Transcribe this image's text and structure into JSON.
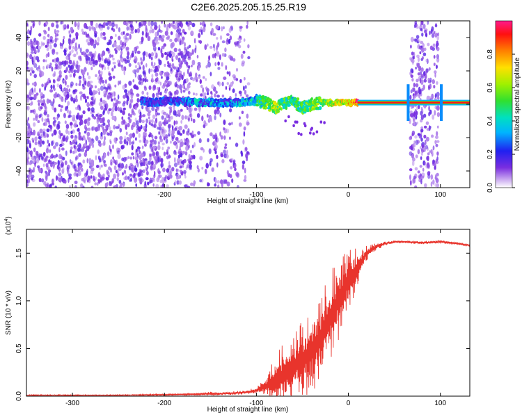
{
  "title": "C2E6.2025.205.15.25.R19",
  "chart_data": [
    {
      "type": "heatmap",
      "title": "C2E6.2025.205.15.25.R19",
      "xlabel": "Height of straight line (km)",
      "ylabel": "Frequency (Hz)",
      "xlim": [
        -350,
        132
      ],
      "ylim": [
        -50,
        50
      ],
      "xticks": [
        -300,
        -200,
        -100,
        0,
        100
      ],
      "yticks": [
        -40,
        -20,
        0,
        20,
        40
      ],
      "xtick_labels": [
        "-300",
        "-200",
        "-100",
        "0",
        "100"
      ],
      "ytick_labels": [
        "-40",
        "-20",
        "0",
        "20",
        "40"
      ],
      "colorbar": {
        "label": "Normalized spectral amplitude",
        "ticks": [
          0.0,
          0.2,
          0.4,
          0.6,
          0.8
        ],
        "tick_labels": [
          "0.0",
          "0.2",
          "0.4",
          "0.6",
          "0.8"
        ],
        "range": [
          0,
          1
        ]
      },
      "noise_regions": [
        {
          "x": [
            -350,
            -170
          ],
          "density": 0.55
        },
        {
          "x": [
            -170,
            -108
          ],
          "density": 0.25
        },
        {
          "x": [
            67,
            98
          ],
          "density": 0.5
        }
      ],
      "signal_ridge": [
        {
          "x": -225,
          "f": 2,
          "amp": 0.25
        },
        {
          "x": -215,
          "f": 1,
          "amp": 0.2
        },
        {
          "x": -200,
          "f": 2,
          "amp": 0.2
        },
        {
          "x": -165,
          "f": 1,
          "amp": 0.35
        },
        {
          "x": -150,
          "f": 1,
          "amp": 0.35
        },
        {
          "x": -135,
          "f": 1,
          "amp": 0.3
        },
        {
          "x": -120,
          "f": 1,
          "amp": 0.35
        },
        {
          "x": -100,
          "f": 2,
          "amp": 0.45
        },
        {
          "x": -90,
          "f": 1,
          "amp": 0.55
        },
        {
          "x": -80,
          "f": -2,
          "amp": 0.6
        },
        {
          "x": -70,
          "f": 1,
          "amp": 0.55
        },
        {
          "x": -60,
          "f": 2,
          "amp": 0.5
        },
        {
          "x": -50,
          "f": -2,
          "amp": 0.55
        },
        {
          "x": -40,
          "f": 0,
          "amp": 0.6
        },
        {
          "x": -30,
          "f": 1,
          "amp": 0.6
        },
        {
          "x": -20,
          "f": 1,
          "amp": 0.65
        },
        {
          "x": -10,
          "f": 1,
          "amp": 0.7
        },
        {
          "x": 0,
          "f": 1,
          "amp": 0.75
        },
        {
          "x": 10,
          "f": 1,
          "amp": 0.9
        },
        {
          "x": 60,
          "f": 1,
          "amp": 0.95
        },
        {
          "x": 100,
          "f": 1,
          "amp": 0.95
        },
        {
          "x": 132,
          "f": 1,
          "amp": 0.95
        }
      ]
    },
    {
      "type": "line",
      "xlabel": "Height of straight line (km)",
      "ylabel": "SNR (10 * v/v)",
      "y_multiplier_label": "(x10",
      "y_multiplier_exp": "4",
      "y_multiplier_close": ")",
      "xlim": [
        -350,
        132
      ],
      "ylim": [
        0,
        1.75
      ],
      "xticks": [
        -300,
        -200,
        -100,
        0,
        100
      ],
      "yticks": [
        0.0,
        0.5,
        1.0,
        1.5
      ],
      "xtick_labels": [
        "-300",
        "-200",
        "-100",
        "0",
        "100"
      ],
      "ytick_labels": [
        "0.0",
        "0.5",
        "1.0",
        "1.5"
      ],
      "color": "#e8342c",
      "series": [
        {
          "x": [
            -350,
            -300,
            -250,
            -200,
            -170,
            -150,
            -130,
            -110,
            -100,
            -90,
            -80,
            -70,
            -60,
            -50,
            -40,
            -30,
            -20,
            -10,
            0,
            10,
            20,
            30,
            40,
            50,
            60,
            80,
            100,
            120,
            132
          ],
          "y": [
            0.01,
            0.01,
            0.01,
            0.015,
            0.02,
            0.025,
            0.03,
            0.04,
            0.06,
            0.1,
            0.15,
            0.22,
            0.3,
            0.38,
            0.48,
            0.62,
            0.82,
            1.02,
            1.2,
            1.35,
            1.5,
            1.57,
            1.6,
            1.62,
            1.62,
            1.61,
            1.62,
            1.6,
            1.58
          ],
          "spread": [
            0.005,
            0.005,
            0.005,
            0.008,
            0.01,
            0.02,
            0.02,
            0.02,
            0.04,
            0.1,
            0.25,
            0.35,
            0.4,
            0.4,
            0.45,
            0.45,
            0.5,
            0.45,
            0.35,
            0.2,
            0.08,
            0.04,
            0.02,
            0.015,
            0.015,
            0.015,
            0.02,
            0.015,
            0.015
          ]
        }
      ]
    }
  ]
}
